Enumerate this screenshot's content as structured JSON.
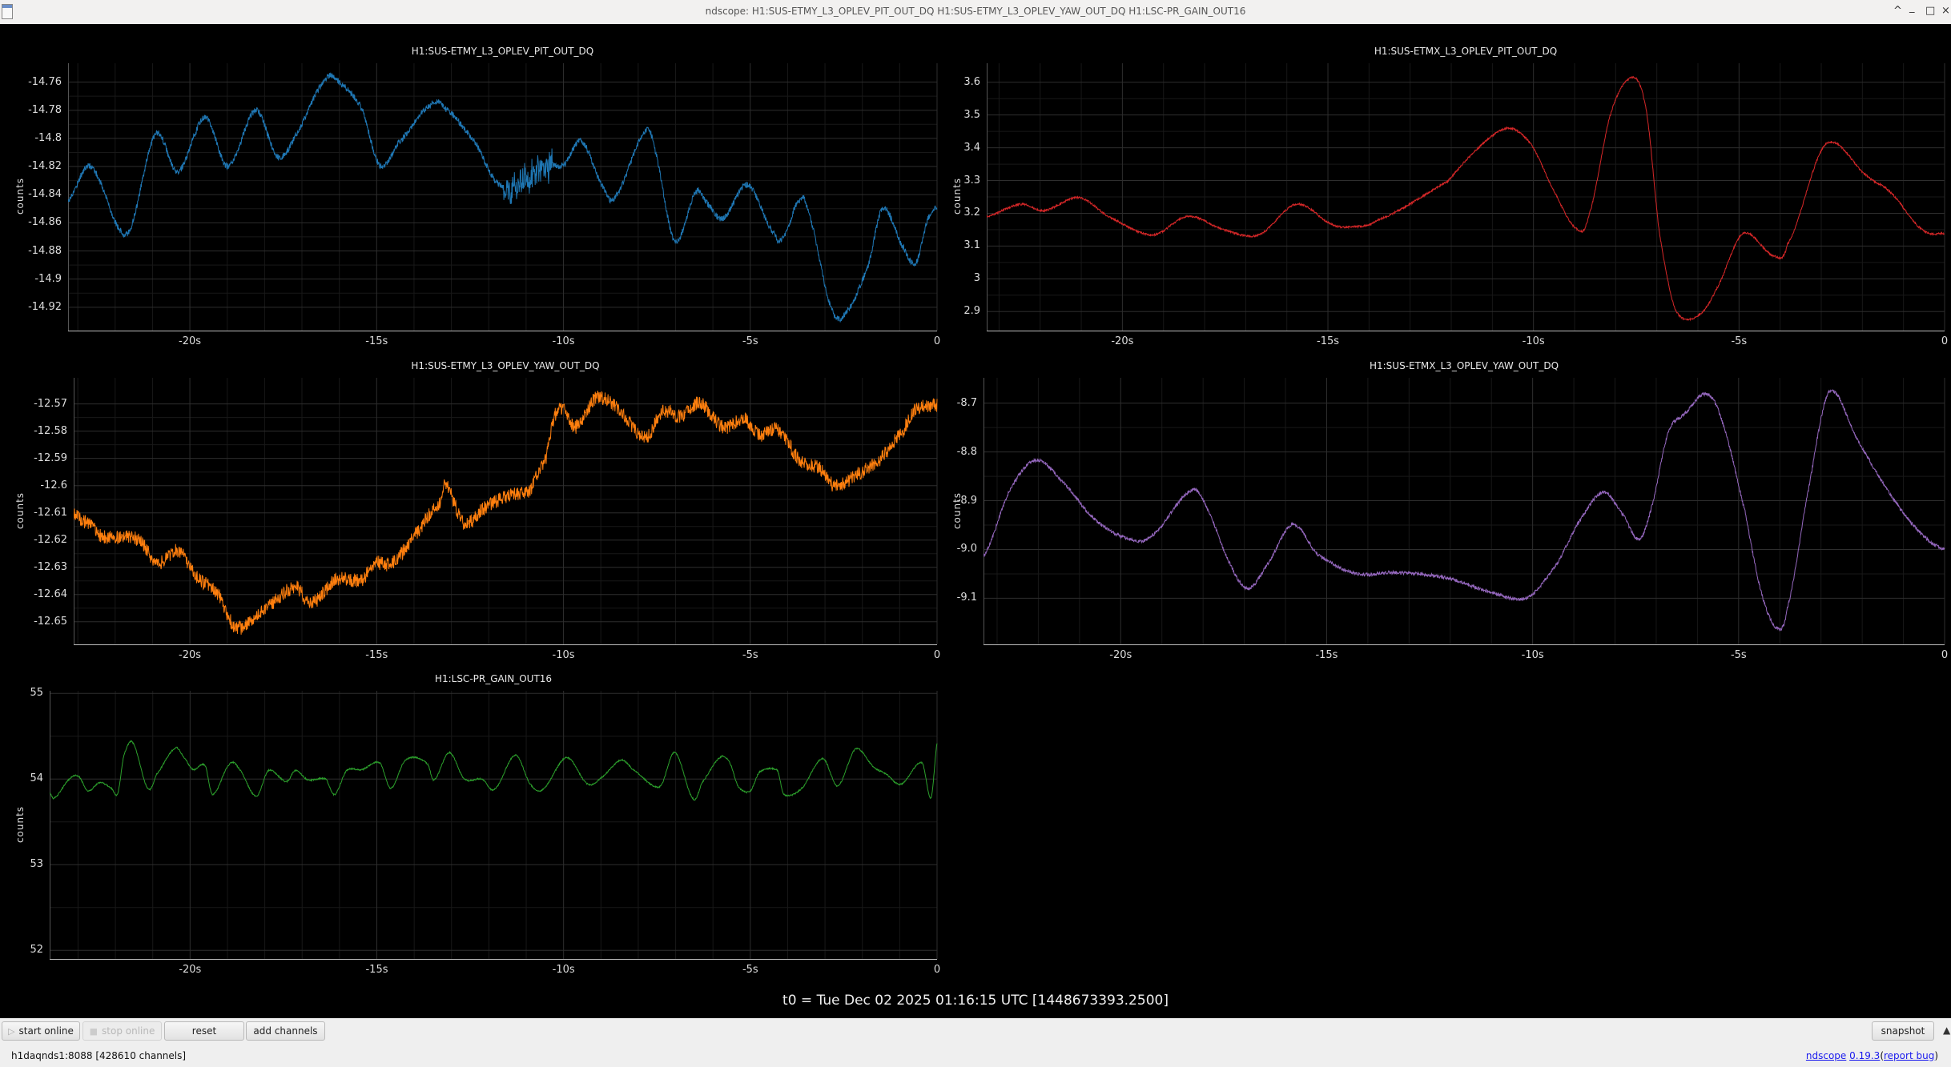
{
  "window": {
    "title": "ndscope: H1:SUS-ETMY_L3_OPLEV_PIT_OUT_DQ H1:SUS-ETMY_L3_OPLEV_YAW_OUT_DQ H1:LSC-PR_GAIN_OUT16",
    "controls": {
      "keep_above": "^",
      "minimize": "_",
      "maximize": "□",
      "close": "×"
    }
  },
  "t0_label": "t0 = Tue Dec 02 2025 01:16:15 UTC [1448673393.2500]",
  "toolbar": {
    "start_online": "start online",
    "start_icon": "▷",
    "stop_online": "stop online",
    "stop_icon": "■",
    "reset": "reset",
    "add_channels": "add channels",
    "snapshot": "snapshot",
    "collapse_icon": "▲"
  },
  "status": {
    "server": "h1daqnds1:8088  [428610 channels]",
    "app_name": "ndscope",
    "version": "0.19.3",
    "open_paren": "(",
    "report_bug": "report bug",
    "close_paren": ")"
  },
  "chart_data": [
    {
      "type": "line",
      "title": "H1:SUS-ETMY_L3_OPLEV_PIT_OUT_DQ",
      "ylabel": "counts",
      "color": "#1f77b4",
      "xlim": [
        -23.26,
        0
      ],
      "ylim": [
        -14.9366,
        -14.7466
      ],
      "yticks": [
        -14.76,
        -14.78,
        -14.8,
        -14.82,
        -14.84,
        -14.86,
        -14.88,
        -14.9,
        -14.92
      ],
      "ytick_labels": [
        "-14.76",
        "-14.78",
        "-14.8",
        "-14.82",
        "-14.84",
        "-14.86",
        "-14.88",
        "-14.9",
        "-14.92"
      ],
      "xticks": [
        -20,
        -15,
        -10,
        -5,
        0
      ],
      "xtick_labels": [
        "-20s",
        "-15s",
        "-10s",
        "-5s",
        "0"
      ],
      "noise": 0.0022,
      "noise_bursts": [
        {
          "from": -11.6,
          "to": -10.3,
          "amplitude": 0.014
        }
      ],
      "points": [
        [
          -23.26,
          -14.844
        ],
        [
          -22.66,
          -14.82
        ],
        [
          -21.69,
          -14.868
        ],
        [
          -20.92,
          -14.797
        ],
        [
          -20.32,
          -14.824
        ],
        [
          -19.6,
          -14.785
        ],
        [
          -18.98,
          -14.82
        ],
        [
          -18.23,
          -14.78
        ],
        [
          -17.66,
          -14.813
        ],
        [
          -17.18,
          -14.798
        ],
        [
          -16.37,
          -14.758
        ],
        [
          -15.97,
          -14.761
        ],
        [
          -15.4,
          -14.779
        ],
        [
          -14.92,
          -14.819
        ],
        [
          -14.44,
          -14.804
        ],
        [
          -13.55,
          -14.776
        ],
        [
          -13.15,
          -14.779
        ],
        [
          -12.34,
          -14.804
        ],
        [
          -11.77,
          -14.832
        ],
        [
          -11.21,
          -14.834
        ],
        [
          -10.56,
          -14.819
        ],
        [
          -10.0,
          -14.819
        ],
        [
          -9.52,
          -14.802
        ],
        [
          -8.95,
          -14.834
        ],
        [
          -8.63,
          -14.842
        ],
        [
          -7.82,
          -14.796
        ],
        [
          -7.58,
          -14.806
        ],
        [
          -7.02,
          -14.873
        ],
        [
          -6.45,
          -14.838
        ],
        [
          -6.13,
          -14.847
        ],
        [
          -5.73,
          -14.857
        ],
        [
          -5.08,
          -14.833
        ],
        [
          -4.35,
          -14.868
        ],
        [
          -4.11,
          -14.87
        ],
        [
          -3.71,
          -14.845
        ],
        [
          -3.47,
          -14.851
        ],
        [
          -2.82,
          -14.921
        ],
        [
          -2.42,
          -14.923
        ],
        [
          -1.85,
          -14.891
        ],
        [
          -1.45,
          -14.85
        ],
        [
          -0.89,
          -14.878
        ],
        [
          -0.56,
          -14.888
        ],
        [
          -0.24,
          -14.857
        ],
        [
          0,
          -14.849
        ]
      ]
    },
    {
      "type": "line",
      "title": "H1:SUS-ETMX_L3_OPLEV_PIT_OUT_DQ",
      "ylabel": "counts",
      "color": "#d62728",
      "xlim": [
        -23.3,
        0
      ],
      "ylim": [
        2.842,
        3.658
      ],
      "yticks": [
        3.6,
        3.5,
        3.4,
        3.3,
        3.2,
        3.1,
        3.0,
        2.9
      ],
      "ytick_labels": [
        "3.6",
        "3.5",
        "3.4",
        "3.3",
        "3.2",
        "3.1",
        "3",
        "2.9"
      ],
      "xticks": [
        -20,
        -15,
        -10,
        -5,
        0
      ],
      "xtick_labels": [
        "-20s",
        "-15s",
        "-10s",
        "-5s",
        "0"
      ],
      "noise": 0.003,
      "points": [
        [
          -23.3,
          3.191
        ],
        [
          -22.46,
          3.228
        ],
        [
          -21.92,
          3.208
        ],
        [
          -21.06,
          3.248
        ],
        [
          -20.36,
          3.191
        ],
        [
          -19.27,
          3.134
        ],
        [
          -18.41,
          3.191
        ],
        [
          -17.55,
          3.151
        ],
        [
          -16.69,
          3.134
        ],
        [
          -15.76,
          3.228
        ],
        [
          -14.9,
          3.167
        ],
        [
          -14.43,
          3.159
        ],
        [
          -13.81,
          3.179
        ],
        [
          -12.09,
          3.297
        ],
        [
          -11.31,
          3.403
        ],
        [
          -10.61,
          3.46
        ],
        [
          -10.06,
          3.411
        ],
        [
          -9.59,
          3.289
        ],
        [
          -8.97,
          3.155
        ],
        [
          -8.66,
          3.191
        ],
        [
          -8.11,
          3.509
        ],
        [
          -7.57,
          3.615
        ],
        [
          -7.25,
          3.509
        ],
        [
          -6.94,
          3.143
        ],
        [
          -6.55,
          2.906
        ],
        [
          -6.01,
          2.886
        ],
        [
          -5.54,
          2.971
        ],
        [
          -4.91,
          3.138
        ],
        [
          -4.13,
          3.069
        ],
        [
          -3.82,
          3.106
        ],
        [
          -2.89,
          3.411
        ],
        [
          -1.87,
          3.313
        ],
        [
          -1.33,
          3.265
        ],
        [
          -0.55,
          3.151
        ],
        [
          0,
          3.138
        ]
      ]
    },
    {
      "type": "line",
      "title": "H1:SUS-ETMY_L3_OPLEV_YAW_OUT_DQ",
      "ylabel": "counts",
      "color": "#ff7f0e",
      "xlim": [
        -23.11,
        0
      ],
      "ylim": [
        -12.6583,
        -12.5604
      ],
      "yticks": [
        -12.57,
        -12.58,
        -12.59,
        -12.6,
        -12.61,
        -12.62,
        -12.63,
        -12.64,
        -12.65
      ],
      "ytick_labels": [
        "-12.57",
        "-12.58",
        "-12.59",
        "-12.6",
        "-12.61",
        "-12.62",
        "-12.63",
        "-12.64",
        "-12.65"
      ],
      "xticks": [
        -20,
        -15,
        -10,
        -5,
        0
      ],
      "xtick_labels": [
        "-20s",
        "-15s",
        "-10s",
        "-5s",
        "0"
      ],
      "noise": 0.0026,
      "points": [
        [
          -23.11,
          -12.6108
        ],
        [
          -22.66,
          -12.6148
        ],
        [
          -22.34,
          -12.6187
        ],
        [
          -21.37,
          -12.6197
        ],
        [
          -20.89,
          -12.6285
        ],
        [
          -20.32,
          -12.6241
        ],
        [
          -19.76,
          -12.6343
        ],
        [
          -19.27,
          -12.6392
        ],
        [
          -18.79,
          -12.652
        ],
        [
          -18.15,
          -12.6471
        ],
        [
          -17.18,
          -12.6373
        ],
        [
          -16.77,
          -12.6432
        ],
        [
          -16.05,
          -12.6343
        ],
        [
          -15.4,
          -12.6348
        ],
        [
          -15.08,
          -12.6285
        ],
        [
          -14.6,
          -12.6285
        ],
        [
          -13.95,
          -12.6177
        ],
        [
          -13.31,
          -12.6059
        ],
        [
          -13.15,
          -12.6001
        ],
        [
          -12.66,
          -12.6138
        ],
        [
          -12.18,
          -12.6089
        ],
        [
          -11.53,
          -12.604
        ],
        [
          -10.89,
          -12.602
        ],
        [
          -10.65,
          -12.5942
        ],
        [
          -10.48,
          -12.5903
        ],
        [
          -10.24,
          -12.5746
        ],
        [
          -10.0,
          -12.5717
        ],
        [
          -9.68,
          -12.5785
        ],
        [
          -9.11,
          -12.5677
        ],
        [
          -8.47,
          -12.5726
        ],
        [
          -7.82,
          -12.5824
        ],
        [
          -7.34,
          -12.5726
        ],
        [
          -6.85,
          -12.5746
        ],
        [
          -6.37,
          -12.5697
        ],
        [
          -5.73,
          -12.5785
        ],
        [
          -5.16,
          -12.5756
        ],
        [
          -4.76,
          -12.5815
        ],
        [
          -4.27,
          -12.5795
        ],
        [
          -3.63,
          -12.5913
        ],
        [
          -3.15,
          -12.5933
        ],
        [
          -2.74,
          -12.6001
        ],
        [
          -2.18,
          -12.5962
        ],
        [
          -1.53,
          -12.5903
        ],
        [
          -0.89,
          -12.5795
        ],
        [
          -0.56,
          -12.5717
        ],
        [
          0,
          -12.5707
        ]
      ]
    },
    {
      "type": "line",
      "title": "H1:SUS-ETMX_L3_OPLEV_YAW_OUT_DQ",
      "ylabel": "counts",
      "color": "#9467bd",
      "xlim": [
        -23.33,
        0
      ],
      "ylim": [
        -9.1945,
        -8.648
      ],
      "yticks": [
        -8.7,
        -8.8,
        -8.9,
        -9.0,
        -9.1
      ],
      "ytick_labels": [
        "-8.7",
        "-8.8",
        "-8.9",
        "-9.0",
        "-9.1"
      ],
      "xticks": [
        -20,
        -15,
        -10,
        -5,
        0
      ],
      "xtick_labels": [
        "-20s",
        "-15s",
        "-10s",
        "-5s",
        "0"
      ],
      "noise": 0.0035,
      "points": [
        [
          -23.33,
          -9.014
        ],
        [
          -22.7,
          -8.88
        ],
        [
          -22.07,
          -8.817
        ],
        [
          -21.45,
          -8.858
        ],
        [
          -20.67,
          -8.935
        ],
        [
          -19.89,
          -8.976
        ],
        [
          -19.27,
          -8.973
        ],
        [
          -18.25,
          -8.878
        ],
        [
          -17.86,
          -8.924
        ],
        [
          -17.39,
          -9.022
        ],
        [
          -16.93,
          -9.08
        ],
        [
          -16.46,
          -9.033
        ],
        [
          -15.83,
          -8.949
        ],
        [
          -15.21,
          -9.011
        ],
        [
          -14.27,
          -9.05
        ],
        [
          -13.34,
          -9.047
        ],
        [
          -12.09,
          -9.058
        ],
        [
          -10.99,
          -9.088
        ],
        [
          -10.14,
          -9.099
        ],
        [
          -9.44,
          -9.033
        ],
        [
          -8.81,
          -8.935
        ],
        [
          -8.27,
          -8.883
        ],
        [
          -7.8,
          -8.93
        ],
        [
          -7.41,
          -8.979
        ],
        [
          -7.1,
          -8.908
        ],
        [
          -6.71,
          -8.76
        ],
        [
          -6.32,
          -8.722
        ],
        [
          -5.77,
          -8.681
        ],
        [
          -5.38,
          -8.744
        ],
        [
          -4.84,
          -8.924
        ],
        [
          -4.45,
          -9.088
        ],
        [
          -4.06,
          -9.162
        ],
        [
          -3.82,
          -9.121
        ],
        [
          -3.35,
          -8.897
        ],
        [
          -2.81,
          -8.678
        ],
        [
          -2.11,
          -8.777
        ],
        [
          -1.33,
          -8.886
        ],
        [
          -0.55,
          -8.968
        ],
        [
          0,
          -8.999
        ]
      ]
    },
    {
      "type": "line",
      "title": "H1:LSC-PR_GAIN_OUT16",
      "ylabel": "counts",
      "color": "#2ca02c",
      "xlim": [
        -23.76,
        0
      ],
      "ylim": [
        51.9,
        55.03
      ],
      "yticks": [
        55,
        54,
        53,
        52
      ],
      "ytick_labels": [
        "55",
        "54",
        "53",
        "52"
      ],
      "xticks": [
        -20,
        -15,
        -10,
        -5,
        0
      ],
      "xtick_labels": [
        "-20s",
        "-15s",
        "-10s",
        "-5s",
        "0"
      ],
      "noise": 0.008,
      "points": [
        [
          -23.76,
          53.83
        ],
        [
          -23.63,
          53.78
        ],
        [
          -23.23,
          54.0
        ],
        [
          -22.98,
          54.03
        ],
        [
          -22.74,
          53.86
        ],
        [
          -22.42,
          53.96
        ],
        [
          -22.1,
          53.89
        ],
        [
          -21.94,
          53.83
        ],
        [
          -21.77,
          54.28
        ],
        [
          -21.53,
          54.42
        ],
        [
          -21.13,
          53.89
        ],
        [
          -20.89,
          54.06
        ],
        [
          -20.4,
          54.36
        ],
        [
          -20.16,
          54.25
        ],
        [
          -19.92,
          54.11
        ],
        [
          -19.6,
          54.16
        ],
        [
          -19.4,
          53.82
        ],
        [
          -18.95,
          54.17
        ],
        [
          -18.71,
          54.13
        ],
        [
          -18.23,
          53.8
        ],
        [
          -17.9,
          54.1
        ],
        [
          -17.42,
          53.97
        ],
        [
          -17.18,
          54.1
        ],
        [
          -16.85,
          53.99
        ],
        [
          -16.37,
          54.0
        ],
        [
          -16.13,
          53.82
        ],
        [
          -15.81,
          54.1
        ],
        [
          -15.4,
          54.11
        ],
        [
          -14.92,
          54.19
        ],
        [
          -14.63,
          53.89
        ],
        [
          -14.27,
          54.2
        ],
        [
          -13.95,
          54.25
        ],
        [
          -13.63,
          54.17
        ],
        [
          -13.47,
          53.99
        ],
        [
          -13.06,
          54.31
        ],
        [
          -12.66,
          54.0
        ],
        [
          -12.18,
          54.0
        ],
        [
          -11.85,
          53.88
        ],
        [
          -11.29,
          54.28
        ],
        [
          -10.89,
          53.94
        ],
        [
          -10.56,
          53.88
        ],
        [
          -9.92,
          54.25
        ],
        [
          -9.35,
          53.94
        ],
        [
          -8.95,
          54.03
        ],
        [
          -8.47,
          54.22
        ],
        [
          -8.15,
          54.11
        ],
        [
          -7.42,
          53.91
        ],
        [
          -7.02,
          54.31
        ],
        [
          -6.53,
          53.77
        ],
        [
          -6.29,
          53.96
        ],
        [
          -5.81,
          54.25
        ],
        [
          -5.56,
          54.2
        ],
        [
          -5.32,
          53.91
        ],
        [
          -5.0,
          53.86
        ],
        [
          -4.76,
          54.08
        ],
        [
          -4.27,
          54.1
        ],
        [
          -4.11,
          53.82
        ],
        [
          -3.63,
          53.89
        ],
        [
          -3.06,
          54.24
        ],
        [
          -2.66,
          53.92
        ],
        [
          -2.18,
          54.35
        ],
        [
          -1.69,
          54.14
        ],
        [
          -1.37,
          54.06
        ],
        [
          -0.97,
          53.94
        ],
        [
          -0.4,
          54.19
        ],
        [
          -0.16,
          53.78
        ],
        [
          0,
          54.42
        ]
      ]
    }
  ]
}
